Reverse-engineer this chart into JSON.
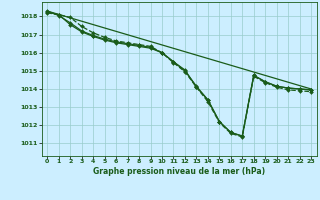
{
  "title": "Graphe pression niveau de la mer (hPa)",
  "bg_color": "#cceeff",
  "grid_color": "#99cccc",
  "line_color": "#1a5c1a",
  "xlim": [
    -0.5,
    23.5
  ],
  "ylim": [
    1010.3,
    1018.8
  ],
  "yticks": [
    1011,
    1012,
    1013,
    1014,
    1015,
    1016,
    1017,
    1018
  ],
  "xticks": [
    0,
    1,
    2,
    3,
    4,
    5,
    6,
    7,
    8,
    9,
    10,
    11,
    12,
    13,
    14,
    15,
    16,
    17,
    18,
    19,
    20,
    21,
    22,
    23
  ],
  "series": [
    {
      "x": [
        0,
        1,
        2,
        3,
        4,
        5,
        6,
        7,
        8,
        9,
        10,
        11,
        12,
        13,
        14,
        15,
        16,
        17,
        18,
        19,
        20,
        21,
        22,
        23
      ],
      "y": [
        1018.2,
        1018.1,
        1017.95,
        1017.45,
        1017.1,
        1016.85,
        1016.65,
        1016.55,
        1016.45,
        1016.35,
        1016.0,
        1015.45,
        1014.95,
        1014.1,
        1013.3,
        1012.15,
        1011.55,
        1011.35,
        1014.7,
        1014.35,
        1014.1,
        1013.95,
        1013.9,
        1013.85
      ],
      "marker": "D",
      "markersize": 2.0,
      "linewidth": 0.9,
      "linestyle": "--"
    },
    {
      "x": [
        0,
        1,
        2,
        3,
        4,
        5,
        6,
        7,
        8,
        9,
        10,
        11,
        12,
        13,
        14,
        15,
        16,
        17,
        18,
        19,
        20,
        21,
        22,
        23
      ],
      "y": [
        1018.25,
        1018.1,
        1017.55,
        1017.15,
        1016.9,
        1016.7,
        1016.55,
        1016.45,
        1016.35,
        1016.25,
        1016.0,
        1015.5,
        1015.0,
        1014.15,
        1013.4,
        1012.2,
        1011.6,
        1011.4,
        1014.75,
        1014.4,
        1014.15,
        1014.05,
        1014.0,
        1013.95
      ],
      "marker": "D",
      "markersize": 2.0,
      "linewidth": 0.9,
      "linestyle": "-"
    },
    {
      "x": [
        0,
        1,
        2,
        3,
        4,
        5,
        6,
        7,
        8,
        9,
        10,
        11,
        12,
        13,
        14,
        15,
        16,
        17,
        18,
        19,
        20,
        21,
        22,
        23
      ],
      "y": [
        1018.3,
        1018.05,
        1017.65,
        1017.2,
        1016.95,
        1016.75,
        1016.6,
        1016.5,
        1016.4,
        1016.3,
        1016.0,
        1015.5,
        1015.05,
        1014.1,
        1013.4,
        1012.2,
        1011.6,
        1011.4,
        1014.75,
        1014.4,
        1014.15,
        1014.05,
        1014.0,
        1013.95
      ],
      "marker": "D",
      "markersize": 2.0,
      "linewidth": 0.9,
      "linestyle": "-"
    },
    {
      "x": [
        0,
        23
      ],
      "y": [
        1018.3,
        1014.0
      ],
      "marker": "None",
      "markersize": 0,
      "linewidth": 0.9,
      "linestyle": "-"
    }
  ]
}
